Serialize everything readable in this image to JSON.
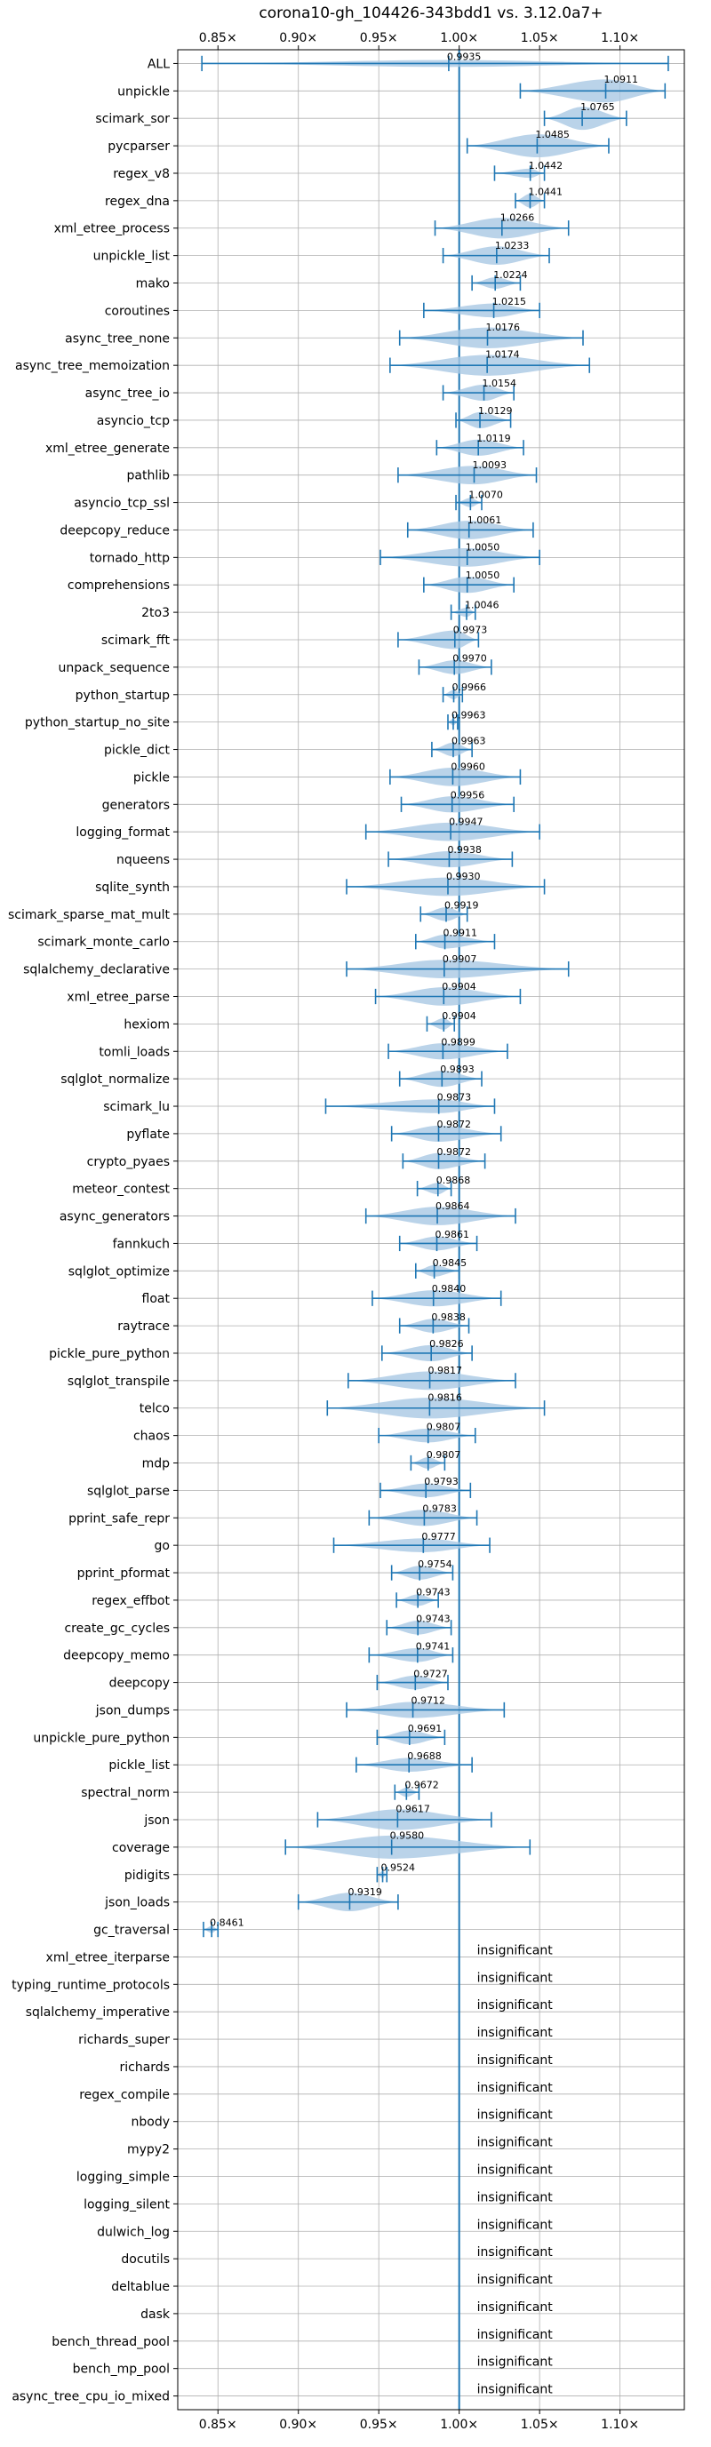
{
  "chart_data": {
    "type": "violin",
    "title": "corona10-gh_104426-343bdd1 vs. 3.12.0a7+",
    "xlabel": "",
    "ylabel": "",
    "xlim": [
      0.825,
      1.14
    ],
    "x_ticks": [
      0.85,
      0.9,
      0.95,
      1.0,
      1.05,
      1.1
    ],
    "x_tick_labels": [
      "0.85×",
      "0.90×",
      "0.95×",
      "1.00×",
      "1.05×",
      "1.10×"
    ],
    "reference_line": 1.0,
    "grid": true,
    "insignificant_label": "insignificant",
    "colors": {
      "violin": "#a9c8e3",
      "line": "#1f77b4",
      "grid": "#b0b0b0"
    },
    "benchmarks": [
      {
        "name": "ALL",
        "value": 0.9935,
        "label": "0.9935",
        "min": 0.84,
        "max": 1.13,
        "width": 0.3
      },
      {
        "name": "unpickle",
        "value": 1.0911,
        "label": "1.0911",
        "min": 1.038,
        "max": 1.128,
        "width": 1.0
      },
      {
        "name": "scimark_sor",
        "value": 1.0765,
        "label": "1.0765",
        "min": 1.053,
        "max": 1.104,
        "width": 1.0
      },
      {
        "name": "pycparser",
        "value": 1.0485,
        "label": "1.0485",
        "min": 1.005,
        "max": 1.093,
        "width": 1.0
      },
      {
        "name": "regex_v8",
        "value": 1.0442,
        "label": "1.0442",
        "min": 1.022,
        "max": 1.053,
        "width": 0.4
      },
      {
        "name": "regex_dna",
        "value": 1.0441,
        "label": "1.0441",
        "min": 1.035,
        "max": 1.053,
        "width": 0.6
      },
      {
        "name": "xml_etree_process",
        "value": 1.0266,
        "label": "1.0266",
        "min": 0.985,
        "max": 1.068,
        "width": 0.9
      },
      {
        "name": "unpickle_list",
        "value": 1.0233,
        "label": "1.0233",
        "min": 0.99,
        "max": 1.056,
        "width": 0.8
      },
      {
        "name": "mako",
        "value": 1.0224,
        "label": "1.0224",
        "min": 1.008,
        "max": 1.038,
        "width": 0.5
      },
      {
        "name": "coroutines",
        "value": 1.0215,
        "label": "1.0215",
        "min": 0.978,
        "max": 1.05,
        "width": 0.6
      },
      {
        "name": "async_tree_none",
        "value": 1.0176,
        "label": "1.0176",
        "min": 0.963,
        "max": 1.077,
        "width": 0.9
      },
      {
        "name": "async_tree_memoization",
        "value": 1.0174,
        "label": "1.0174",
        "min": 0.957,
        "max": 1.081,
        "width": 0.9
      },
      {
        "name": "async_tree_io",
        "value": 1.0154,
        "label": "1.0154",
        "min": 0.99,
        "max": 1.034,
        "width": 0.7
      },
      {
        "name": "asyncio_tcp",
        "value": 1.0129,
        "label": "1.0129",
        "min": 0.998,
        "max": 1.032,
        "width": 0.7
      },
      {
        "name": "xml_etree_generate",
        "value": 1.0119,
        "label": "1.0119",
        "min": 0.986,
        "max": 1.04,
        "width": 0.7
      },
      {
        "name": "pathlib",
        "value": 1.0093,
        "label": "1.0093",
        "min": 0.962,
        "max": 1.048,
        "width": 0.8
      },
      {
        "name": "asyncio_tcp_ssl",
        "value": 1.007,
        "label": "1.0070",
        "min": 0.998,
        "max": 1.014,
        "width": 0.4
      },
      {
        "name": "deepcopy_reduce",
        "value": 1.0061,
        "label": "1.0061",
        "min": 0.968,
        "max": 1.046,
        "width": 0.8
      },
      {
        "name": "tornado_http",
        "value": 1.005,
        "label": "1.0050",
        "min": 0.951,
        "max": 1.05,
        "width": 0.8
      },
      {
        "name": "comprehensions",
        "value": 1.005,
        "label": "1.0050",
        "min": 0.978,
        "max": 1.034,
        "width": 0.7
      },
      {
        "name": "2to3",
        "value": 1.0046,
        "label": "1.0046",
        "min": 0.995,
        "max": 1.01,
        "width": 0.4
      },
      {
        "name": "scimark_fft",
        "value": 0.9973,
        "label": "0.9973",
        "min": 0.962,
        "max": 1.012,
        "width": 0.8
      },
      {
        "name": "unpack_sequence",
        "value": 0.997,
        "label": "0.9970",
        "min": 0.975,
        "max": 1.02,
        "width": 0.6
      },
      {
        "name": "python_startup",
        "value": 0.9966,
        "label": "0.9966",
        "min": 0.99,
        "max": 1.002,
        "width": 0.4
      },
      {
        "name": "python_startup_no_site",
        "value": 0.9963,
        "label": "0.9963",
        "min": 0.993,
        "max": 0.999,
        "width": 0.3
      },
      {
        "name": "pickle_dict",
        "value": 0.9963,
        "label": "0.9963",
        "min": 0.983,
        "max": 1.008,
        "width": 0.6
      },
      {
        "name": "pickle",
        "value": 0.996,
        "label": "0.9960",
        "min": 0.957,
        "max": 1.038,
        "width": 0.8
      },
      {
        "name": "generators",
        "value": 0.9956,
        "label": "0.9956",
        "min": 0.964,
        "max": 1.034,
        "width": 0.7
      },
      {
        "name": "logging_format",
        "value": 0.9947,
        "label": "0.9947",
        "min": 0.942,
        "max": 1.05,
        "width": 0.8
      },
      {
        "name": "nqueens",
        "value": 0.9938,
        "label": "0.9938",
        "min": 0.956,
        "max": 1.033,
        "width": 0.7
      },
      {
        "name": "sqlite_synth",
        "value": 0.993,
        "label": "0.9930",
        "min": 0.93,
        "max": 1.053,
        "width": 0.8
      },
      {
        "name": "scimark_sparse_mat_mult",
        "value": 0.9919,
        "label": "0.9919",
        "min": 0.976,
        "max": 1.005,
        "width": 0.6
      },
      {
        "name": "scimark_monte_carlo",
        "value": 0.9911,
        "label": "0.9911",
        "min": 0.973,
        "max": 1.022,
        "width": 0.6
      },
      {
        "name": "sqlalchemy_declarative",
        "value": 0.9907,
        "label": "0.9907",
        "min": 0.93,
        "max": 1.068,
        "width": 0.8
      },
      {
        "name": "xml_etree_parse",
        "value": 0.9904,
        "label": "0.9904",
        "min": 0.948,
        "max": 1.038,
        "width": 0.8
      },
      {
        "name": "hexiom",
        "value": 0.9904,
        "label": "0.9904",
        "min": 0.98,
        "max": 0.997,
        "width": 0.5
      },
      {
        "name": "tomli_loads",
        "value": 0.9899,
        "label": "0.9899",
        "min": 0.956,
        "max": 1.03,
        "width": 0.7
      },
      {
        "name": "sqlglot_normalize",
        "value": 0.9893,
        "label": "0.9893",
        "min": 0.963,
        "max": 1.014,
        "width": 0.7
      },
      {
        "name": "scimark_lu",
        "value": 0.9873,
        "label": "0.9873",
        "min": 0.917,
        "max": 1.022,
        "width": 0.6
      },
      {
        "name": "pyflate",
        "value": 0.9872,
        "label": "0.9872",
        "min": 0.958,
        "max": 1.026,
        "width": 0.7
      },
      {
        "name": "crypto_pyaes",
        "value": 0.9872,
        "label": "0.9872",
        "min": 0.965,
        "max": 1.016,
        "width": 0.7
      },
      {
        "name": "meteor_contest",
        "value": 0.9868,
        "label": "0.9868",
        "min": 0.974,
        "max": 0.995,
        "width": 0.5
      },
      {
        "name": "async_generators",
        "value": 0.9864,
        "label": "0.9864",
        "min": 0.942,
        "max": 1.035,
        "width": 0.8
      },
      {
        "name": "fannkuch",
        "value": 0.9861,
        "label": "0.9861",
        "min": 0.963,
        "max": 1.011,
        "width": 0.6
      },
      {
        "name": "sqlglot_optimize",
        "value": 0.9845,
        "label": "0.9845",
        "min": 0.973,
        "max": 1.0,
        "width": 0.5
      },
      {
        "name": "float",
        "value": 0.984,
        "label": "0.9840",
        "min": 0.946,
        "max": 1.026,
        "width": 0.7
      },
      {
        "name": "raytrace",
        "value": 0.9838,
        "label": "0.9838",
        "min": 0.963,
        "max": 1.006,
        "width": 0.6
      },
      {
        "name": "pickle_pure_python",
        "value": 0.9826,
        "label": "0.9826",
        "min": 0.952,
        "max": 1.008,
        "width": 0.7
      },
      {
        "name": "sqlglot_transpile",
        "value": 0.9817,
        "label": "0.9817",
        "min": 0.931,
        "max": 1.035,
        "width": 0.8
      },
      {
        "name": "telco",
        "value": 0.9816,
        "label": "0.9816",
        "min": 0.918,
        "max": 1.053,
        "width": 0.9
      },
      {
        "name": "chaos",
        "value": 0.9807,
        "label": "0.9807",
        "min": 0.95,
        "max": 1.01,
        "width": 0.6
      },
      {
        "name": "mdp",
        "value": 0.9807,
        "label": "0.9807",
        "min": 0.97,
        "max": 0.991,
        "width": 0.5
      },
      {
        "name": "sqlglot_parse",
        "value": 0.9793,
        "label": "0.9793",
        "min": 0.951,
        "max": 1.007,
        "width": 0.6
      },
      {
        "name": "pprint_safe_repr",
        "value": 0.9783,
        "label": "0.9783",
        "min": 0.944,
        "max": 1.011,
        "width": 0.7
      },
      {
        "name": "go",
        "value": 0.9777,
        "label": "0.9777",
        "min": 0.922,
        "max": 1.019,
        "width": 0.6
      },
      {
        "name": "pprint_pformat",
        "value": 0.9754,
        "label": "0.9754",
        "min": 0.958,
        "max": 0.996,
        "width": 0.6
      },
      {
        "name": "regex_effbot",
        "value": 0.9743,
        "label": "0.9743",
        "min": 0.961,
        "max": 0.987,
        "width": 0.5
      },
      {
        "name": "create_gc_cycles",
        "value": 0.9743,
        "label": "0.9743",
        "min": 0.955,
        "max": 0.995,
        "width": 0.6
      },
      {
        "name": "deepcopy_memo",
        "value": 0.9741,
        "label": "0.9741",
        "min": 0.944,
        "max": 0.996,
        "width": 0.6
      },
      {
        "name": "deepcopy",
        "value": 0.9727,
        "label": "0.9727",
        "min": 0.949,
        "max": 0.993,
        "width": 0.6
      },
      {
        "name": "json_dumps",
        "value": 0.9712,
        "label": "0.9712",
        "min": 0.93,
        "max": 1.028,
        "width": 0.7
      },
      {
        "name": "unpickle_pure_python",
        "value": 0.9691,
        "label": "0.9691",
        "min": 0.949,
        "max": 0.991,
        "width": 0.6
      },
      {
        "name": "pickle_list",
        "value": 0.9688,
        "label": "0.9688",
        "min": 0.936,
        "max": 1.008,
        "width": 0.6
      },
      {
        "name": "spectral_norm",
        "value": 0.9672,
        "label": "0.9672",
        "min": 0.96,
        "max": 0.975,
        "width": 0.4
      },
      {
        "name": "json",
        "value": 0.9617,
        "label": "0.9617",
        "min": 0.912,
        "max": 1.02,
        "width": 0.9
      },
      {
        "name": "coverage",
        "value": 0.958,
        "label": "0.9580",
        "min": 0.892,
        "max": 1.044,
        "width": 1.0
      },
      {
        "name": "pidigits",
        "value": 0.9524,
        "label": "0.9524",
        "min": 0.949,
        "max": 0.955,
        "width": 0.3
      },
      {
        "name": "json_loads",
        "value": 0.9319,
        "label": "0.9319",
        "min": 0.9,
        "max": 0.962,
        "width": 0.8
      },
      {
        "name": "gc_traversal",
        "value": 0.8461,
        "label": "0.8461",
        "min": 0.841,
        "max": 0.85,
        "width": 0.3
      },
      {
        "name": "xml_etree_iterparse",
        "value": null,
        "label": null
      },
      {
        "name": "typing_runtime_protocols",
        "value": null,
        "label": null
      },
      {
        "name": "sqlalchemy_imperative",
        "value": null,
        "label": null
      },
      {
        "name": "richards_super",
        "value": null,
        "label": null
      },
      {
        "name": "richards",
        "value": null,
        "label": null
      },
      {
        "name": "regex_compile",
        "value": null,
        "label": null
      },
      {
        "name": "nbody",
        "value": null,
        "label": null
      },
      {
        "name": "mypy2",
        "value": null,
        "label": null
      },
      {
        "name": "logging_simple",
        "value": null,
        "label": null
      },
      {
        "name": "logging_silent",
        "value": null,
        "label": null
      },
      {
        "name": "dulwich_log",
        "value": null,
        "label": null
      },
      {
        "name": "docutils",
        "value": null,
        "label": null
      },
      {
        "name": "deltablue",
        "value": null,
        "label": null
      },
      {
        "name": "dask",
        "value": null,
        "label": null
      },
      {
        "name": "bench_thread_pool",
        "value": null,
        "label": null
      },
      {
        "name": "bench_mp_pool",
        "value": null,
        "label": null
      },
      {
        "name": "async_tree_cpu_io_mixed",
        "value": null,
        "label": null
      }
    ]
  }
}
